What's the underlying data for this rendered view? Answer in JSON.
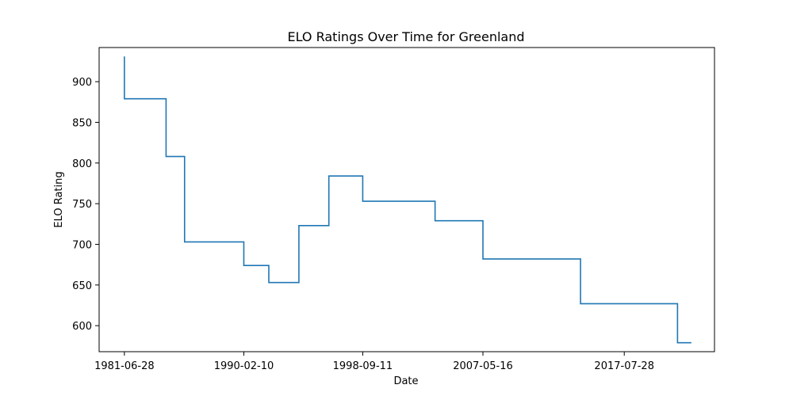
{
  "chart_data": {
    "type": "line",
    "title": "ELO Ratings Over Time for Greenland",
    "xlabel": "Date",
    "ylabel": "ELO Rating",
    "x_ticks": [
      "1981-06-28",
      "1990-02-10",
      "1998-09-11",
      "2007-05-16",
      "2017-07-28"
    ],
    "y_ticks": [
      600,
      650,
      700,
      750,
      800,
      850,
      900
    ],
    "xlim": [
      "1979-09-01",
      "2024-02-01"
    ],
    "ylim": [
      568,
      942
    ],
    "grid": false,
    "legend": "none",
    "step": "post",
    "series": [
      {
        "color": "#1f77b4",
        "points": [
          {
            "x": "1981-06-28",
            "y": 931
          },
          {
            "x": "1981-06-28",
            "y": 879
          },
          {
            "x": "1984-07-01",
            "y": 879
          },
          {
            "x": "1984-07-01",
            "y": 808
          },
          {
            "x": "1985-11-01",
            "y": 808
          },
          {
            "x": "1985-11-01",
            "y": 703
          },
          {
            "x": "1990-02-10",
            "y": 703
          },
          {
            "x": "1990-02-10",
            "y": 674
          },
          {
            "x": "1991-12-01",
            "y": 674
          },
          {
            "x": "1991-12-01",
            "y": 653
          },
          {
            "x": "1994-02-01",
            "y": 653
          },
          {
            "x": "1994-02-01",
            "y": 723
          },
          {
            "x": "1996-04-01",
            "y": 723
          },
          {
            "x": "1996-04-01",
            "y": 784
          },
          {
            "x": "1998-09-11",
            "y": 784
          },
          {
            "x": "1998-09-11",
            "y": 753
          },
          {
            "x": "2003-12-01",
            "y": 753
          },
          {
            "x": "2003-12-01",
            "y": 729
          },
          {
            "x": "2007-05-16",
            "y": 729
          },
          {
            "x": "2007-05-16",
            "y": 682
          },
          {
            "x": "2014-06-01",
            "y": 682
          },
          {
            "x": "2014-06-01",
            "y": 627
          },
          {
            "x": "2021-06-01",
            "y": 627
          },
          {
            "x": "2021-06-01",
            "y": 579
          },
          {
            "x": "2022-06-01",
            "y": 579
          }
        ]
      }
    ]
  }
}
